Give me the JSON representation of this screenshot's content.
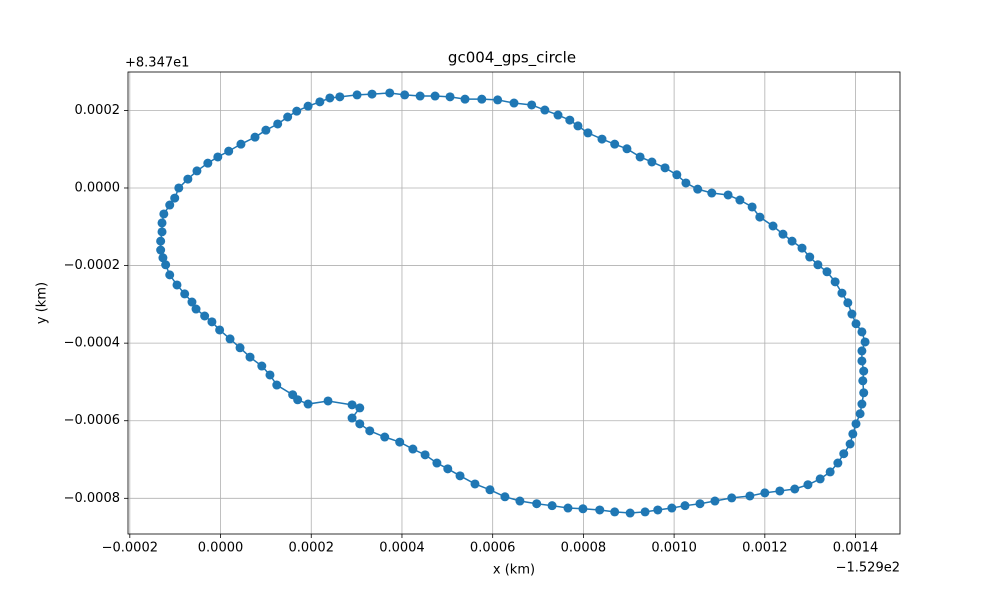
{
  "chart_data": {
    "type": "line",
    "title": "gc004_gps_circle",
    "xlabel": "x (km)",
    "ylabel": "y (km)",
    "x_offset": "−1.529e2",
    "y_offset": "+8.347e1",
    "color": "#1f77b4",
    "grid": true,
    "marker": "o",
    "xlim": [
      -0.000204,
      0.001498
    ],
    "ylim": [
      -0.000892,
      0.000299
    ],
    "xticks": [
      {
        "value": -0.0002,
        "label": "−0.0002"
      },
      {
        "value": 0,
        "label": "0.0000"
      },
      {
        "value": 0.0002,
        "label": "0.0002"
      },
      {
        "value": 0.0004,
        "label": "0.0004"
      },
      {
        "value": 0.0006,
        "label": "0.0006"
      },
      {
        "value": 0.0008,
        "label": "0.0008"
      },
      {
        "value": 0.001,
        "label": "0.0010"
      },
      {
        "value": 0.0012,
        "label": "0.0012"
      },
      {
        "value": 0.0014,
        "label": "0.0014"
      }
    ],
    "yticks": [
      {
        "value": -0.0008,
        "label": "−0.0008"
      },
      {
        "value": -0.0006,
        "label": "−0.0006"
      },
      {
        "value": -0.0004,
        "label": "−0.0004"
      },
      {
        "value": -0.0002,
        "label": "−0.0002"
      },
      {
        "value": 0,
        "label": "0.0000"
      },
      {
        "value": 0.0002,
        "label": "0.0002"
      }
    ],
    "x": [
      0.00029,
      0.000237,
      0.000193,
      0.00017,
      0.000159,
      0.000124,
      0.000109,
      9.1e-05,
      6.5e-05,
      4.3e-05,
      2.1e-05,
      -2e-06,
      -1.9e-05,
      -3.5e-05,
      -5.4e-05,
      -6.3e-05,
      -7.9e-05,
      -9.6e-05,
      -0.000112,
      -0.000121,
      -0.000127,
      -0.000132,
      -0.000132,
      -0.000129,
      -0.000129,
      -0.000125,
      -0.000112,
      -0.000101,
      -9.2e-05,
      -7.2e-05,
      -5.2e-05,
      -2.8e-05,
      -6e-06,
      1.8e-05,
      4.5e-05,
      7.6e-05,
      0.0001,
      0.000126,
      0.000148,
      0.000168,
      0.000193,
      0.000219,
      0.000241,
      0.000263,
      0.000301,
      0.000334,
      0.000373,
      0.000406,
      0.00044,
      0.000473,
      0.000506,
      0.000539,
      0.000576,
      0.000611,
      0.000647,
      0.000686,
      0.000715,
      0.000744,
      0.00077,
      0.000788,
      0.00081,
      0.000841,
      0.000869,
      0.000896,
      0.000925,
      0.000951,
      0.00098,
      0.001006,
      0.001026,
      0.001052,
      0.001083,
      0.001119,
      0.001145,
      0.001172,
      0.001189,
      0.001218,
      0.00124,
      0.00126,
      0.001282,
      0.001299,
      0.001317,
      0.001337,
      0.001355,
      0.00137,
      0.001383,
      0.001392,
      0.001401,
      0.001414,
      0.001421,
      0.001414,
      0.001414,
      0.001418,
      0.001416,
      0.001418,
      0.001414,
      0.00141,
      0.001401,
      0.001394,
      0.001388,
      0.001374,
      0.001361,
      0.001344,
      0.001322,
      0.001295,
      0.001266,
      0.001233,
      0.0012,
      0.001167,
      0.001127,
      0.00109,
      0.001057,
      0.001024,
      0.000995,
      0.000964,
      0.000936,
      0.000903,
      0.000869,
      0.000836,
      0.000799,
      0.000766,
      0.000731,
      0.000697,
      0.00066,
      0.000627,
      0.000594,
      0.000561,
      0.000528,
      0.000501,
      0.000477,
      0.000451,
      0.000424,
      0.000395,
      0.000362,
      0.000329,
      0.000307,
      0.00029,
      0.000307
    ],
    "y": [
      -0.000559,
      -0.000549,
      -0.000557,
      -0.000546,
      -0.000533,
      -0.000508,
      -0.000482,
      -0.000459,
      -0.000436,
      -0.000412,
      -0.000389,
      -0.000366,
      -0.000345,
      -0.00033,
      -0.000312,
      -0.000294,
      -0.000273,
      -0.00025,
      -0.000224,
      -0.000198,
      -0.00018,
      -0.00016,
      -0.000137,
      -0.000113,
      -9e-05,
      -6.7e-05,
      -4.4e-05,
      -2.6e-05,
      0,
      2.3e-05,
      4.4e-05,
      6.4e-05,
      8e-05,
      9.5e-05,
      0.000113,
      0.000131,
      0.000149,
      0.000165,
      0.000183,
      0.000198,
      0.000211,
      0.000222,
      0.000232,
      0.000235,
      0.00024,
      0.000242,
      0.000245,
      0.00024,
      0.000237,
      0.000237,
      0.000235,
      0.000229,
      0.000229,
      0.000227,
      0.000219,
      0.000214,
      0.000201,
      0.000188,
      0.000175,
      0.00016,
      0.000142,
      0.000126,
      0.000113,
      0.000101,
      8e-05,
      6.7e-05,
      5.2e-05,
      3.4e-05,
      1.3e-05,
      -3e-06,
      -1.3e-05,
      -1.8e-05,
      -3.1e-05,
      -4.9e-05,
      -7.5e-05,
      -9.8e-05,
      -0.000119,
      -0.000137,
      -0.000155,
      -0.000178,
      -0.000198,
      -0.000216,
      -0.000242,
      -0.000271,
      -0.000296,
      -0.000325,
      -0.00035,
      -0.000371,
      -0.000397,
      -0.00042,
      -0.000446,
      -0.000472,
      -0.000497,
      -0.000528,
      -0.000557,
      -0.000582,
      -0.000608,
      -0.000634,
      -0.00066,
      -0.000685,
      -0.000709,
      -0.000732,
      -0.00075,
      -0.000765,
      -0.000776,
      -0.000781,
      -0.000786,
      -0.000794,
      -0.000799,
      -0.000807,
      -0.000814,
      -0.000819,
      -0.000825,
      -0.00083,
      -0.000835,
      -0.000838,
      -0.000835,
      -0.00083,
      -0.000827,
      -0.000825,
      -0.000819,
      -0.000814,
      -0.000807,
      -0.000796,
      -0.000778,
      -0.000763,
      -0.000742,
      -0.000724,
      -0.000709,
      -0.000688,
      -0.000673,
      -0.000655,
      -0.000642,
      -0.000626,
      -0.000608,
      -0.000593,
      -0.000567
    ]
  }
}
